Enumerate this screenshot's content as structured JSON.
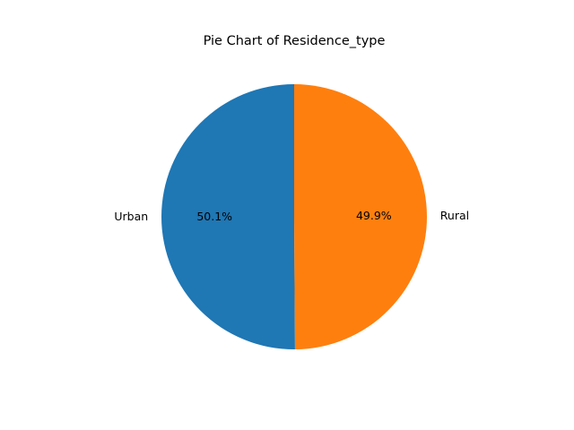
{
  "chart_data": {
    "type": "pie",
    "title": "Pie Chart of Residence_type",
    "labels": [
      "Urban",
      "Rural"
    ],
    "values": [
      50.1,
      49.9
    ],
    "value_labels": [
      "50.1%",
      "49.9%"
    ],
    "colors": [
      "#1f77b4",
      "#ff7f0e"
    ],
    "start_angle": 90,
    "direction": "counterclockwise"
  }
}
